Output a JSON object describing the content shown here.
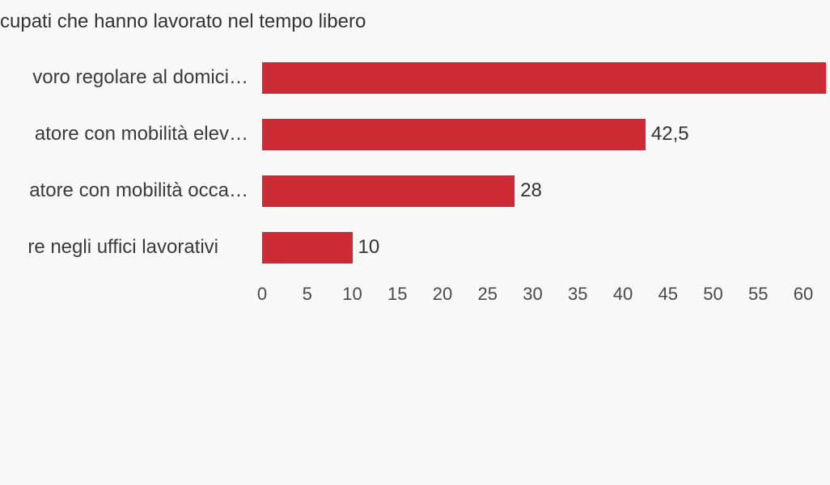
{
  "chart_data": {
    "type": "bar",
    "orientation": "horizontal",
    "title": "cupati che hanno lavorato nel tempo libero",
    "title_note": "title is clipped at the left edge of the image",
    "categories": [
      "voro regolare al domici…",
      "atore con mobilità elev…",
      "atore con mobilità occa…",
      "re negli uffici lavorativi"
    ],
    "values": [
      62.5,
      42.5,
      28,
      10
    ],
    "value_labels": [
      "",
      "42,5",
      "28",
      "10"
    ],
    "value_label_note": "first bar's value label is cut off beyond the right edge of the image",
    "xlabel": "",
    "ylabel": "",
    "xlim": [
      0,
      60
    ],
    "x_ticks": [
      0,
      5,
      10,
      15,
      20,
      25,
      30,
      35,
      40,
      45,
      50,
      55,
      60
    ],
    "x_tick_labels": [
      "0",
      "5",
      "10",
      "15",
      "20",
      "25",
      "30",
      "35",
      "40",
      "45",
      "50",
      "55",
      "60"
    ],
    "grid": false,
    "legend": false,
    "bar_color": "#cc2b33",
    "text_color": "#333333",
    "axis_text_color": "#4a4a4a",
    "background_color": "#f8f8f8"
  }
}
